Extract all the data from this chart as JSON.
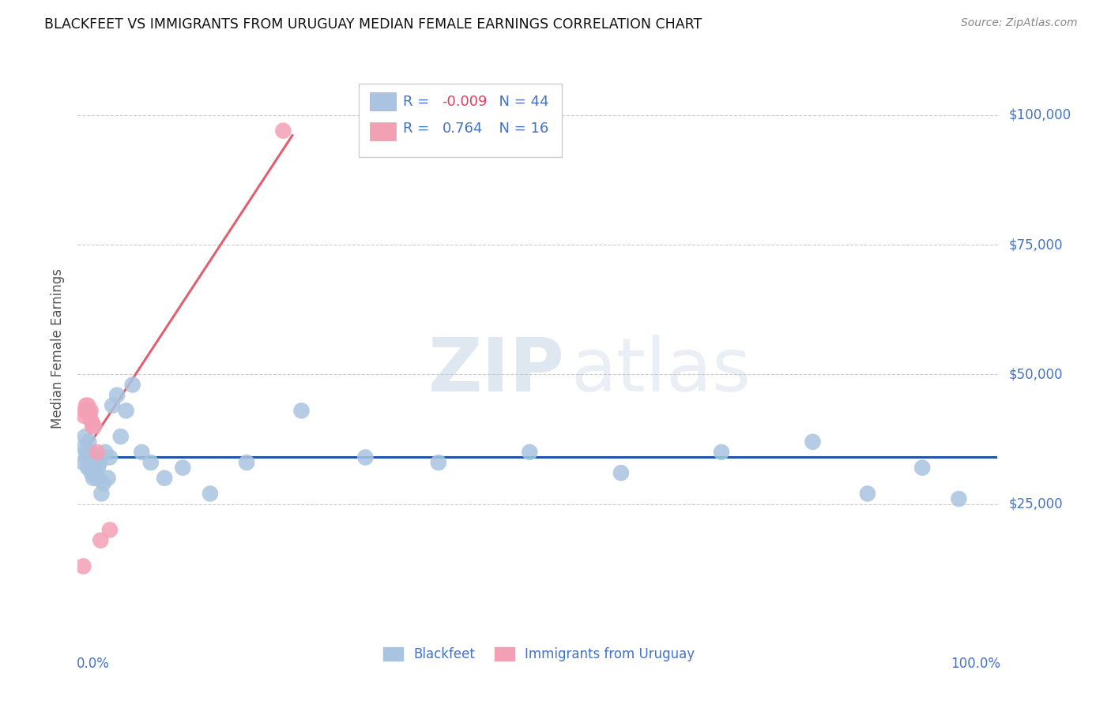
{
  "title": "BLACKFEET VS IMMIGRANTS FROM URUGUAY MEDIAN FEMALE EARNINGS CORRELATION CHART",
  "source": "Source: ZipAtlas.com",
  "ylabel": "Median Female Earnings",
  "ylim": [
    0,
    110000
  ],
  "xlim": [
    -0.005,
    1.005
  ],
  "blue_R": -0.009,
  "blue_N": 44,
  "pink_R": 0.764,
  "pink_N": 16,
  "blue_color": "#a8c4e0",
  "pink_color": "#f4a0b4",
  "blue_line_color": "#2255aa",
  "pink_line_color": "#e06070",
  "grid_color": "#cccccc",
  "bg_color": "#ffffff",
  "title_color": "#111111",
  "axis_label_color": "#555555",
  "right_label_color": "#4472c4",
  "legend_text_color": "#4472c4",
  "legend_r_neg_color": "#e05070",
  "legend_blue_label": "Blackfeet",
  "legend_pink_label": "Immigrants from Uruguay",
  "blue_x": [
    0.001,
    0.002,
    0.003,
    0.004,
    0.005,
    0.006,
    0.007,
    0.008,
    0.009,
    0.01,
    0.011,
    0.012,
    0.013,
    0.014,
    0.015,
    0.016,
    0.017,
    0.019,
    0.021,
    0.023,
    0.025,
    0.028,
    0.03,
    0.033,
    0.038,
    0.042,
    0.048,
    0.055,
    0.065,
    0.075,
    0.09,
    0.11,
    0.14,
    0.18,
    0.24,
    0.31,
    0.39,
    0.49,
    0.59,
    0.7,
    0.8,
    0.86,
    0.92,
    0.96
  ],
  "blue_y": [
    33000,
    36000,
    38000,
    35000,
    34000,
    32000,
    37000,
    33000,
    35000,
    31000,
    32000,
    30000,
    33000,
    34000,
    31000,
    30000,
    32000,
    33000,
    27000,
    29000,
    35000,
    30000,
    34000,
    44000,
    46000,
    38000,
    43000,
    48000,
    35000,
    33000,
    30000,
    32000,
    27000,
    33000,
    43000,
    34000,
    33000,
    35000,
    31000,
    35000,
    37000,
    27000,
    32000,
    26000
  ],
  "pink_x": [
    0.001,
    0.002,
    0.003,
    0.004,
    0.005,
    0.006,
    0.007,
    0.008,
    0.009,
    0.01,
    0.011,
    0.013,
    0.016,
    0.02,
    0.03,
    0.22
  ],
  "pink_y": [
    13000,
    42000,
    43000,
    44000,
    43000,
    44000,
    43000,
    42000,
    43000,
    41000,
    40000,
    40000,
    35000,
    18000,
    20000,
    97000
  ]
}
